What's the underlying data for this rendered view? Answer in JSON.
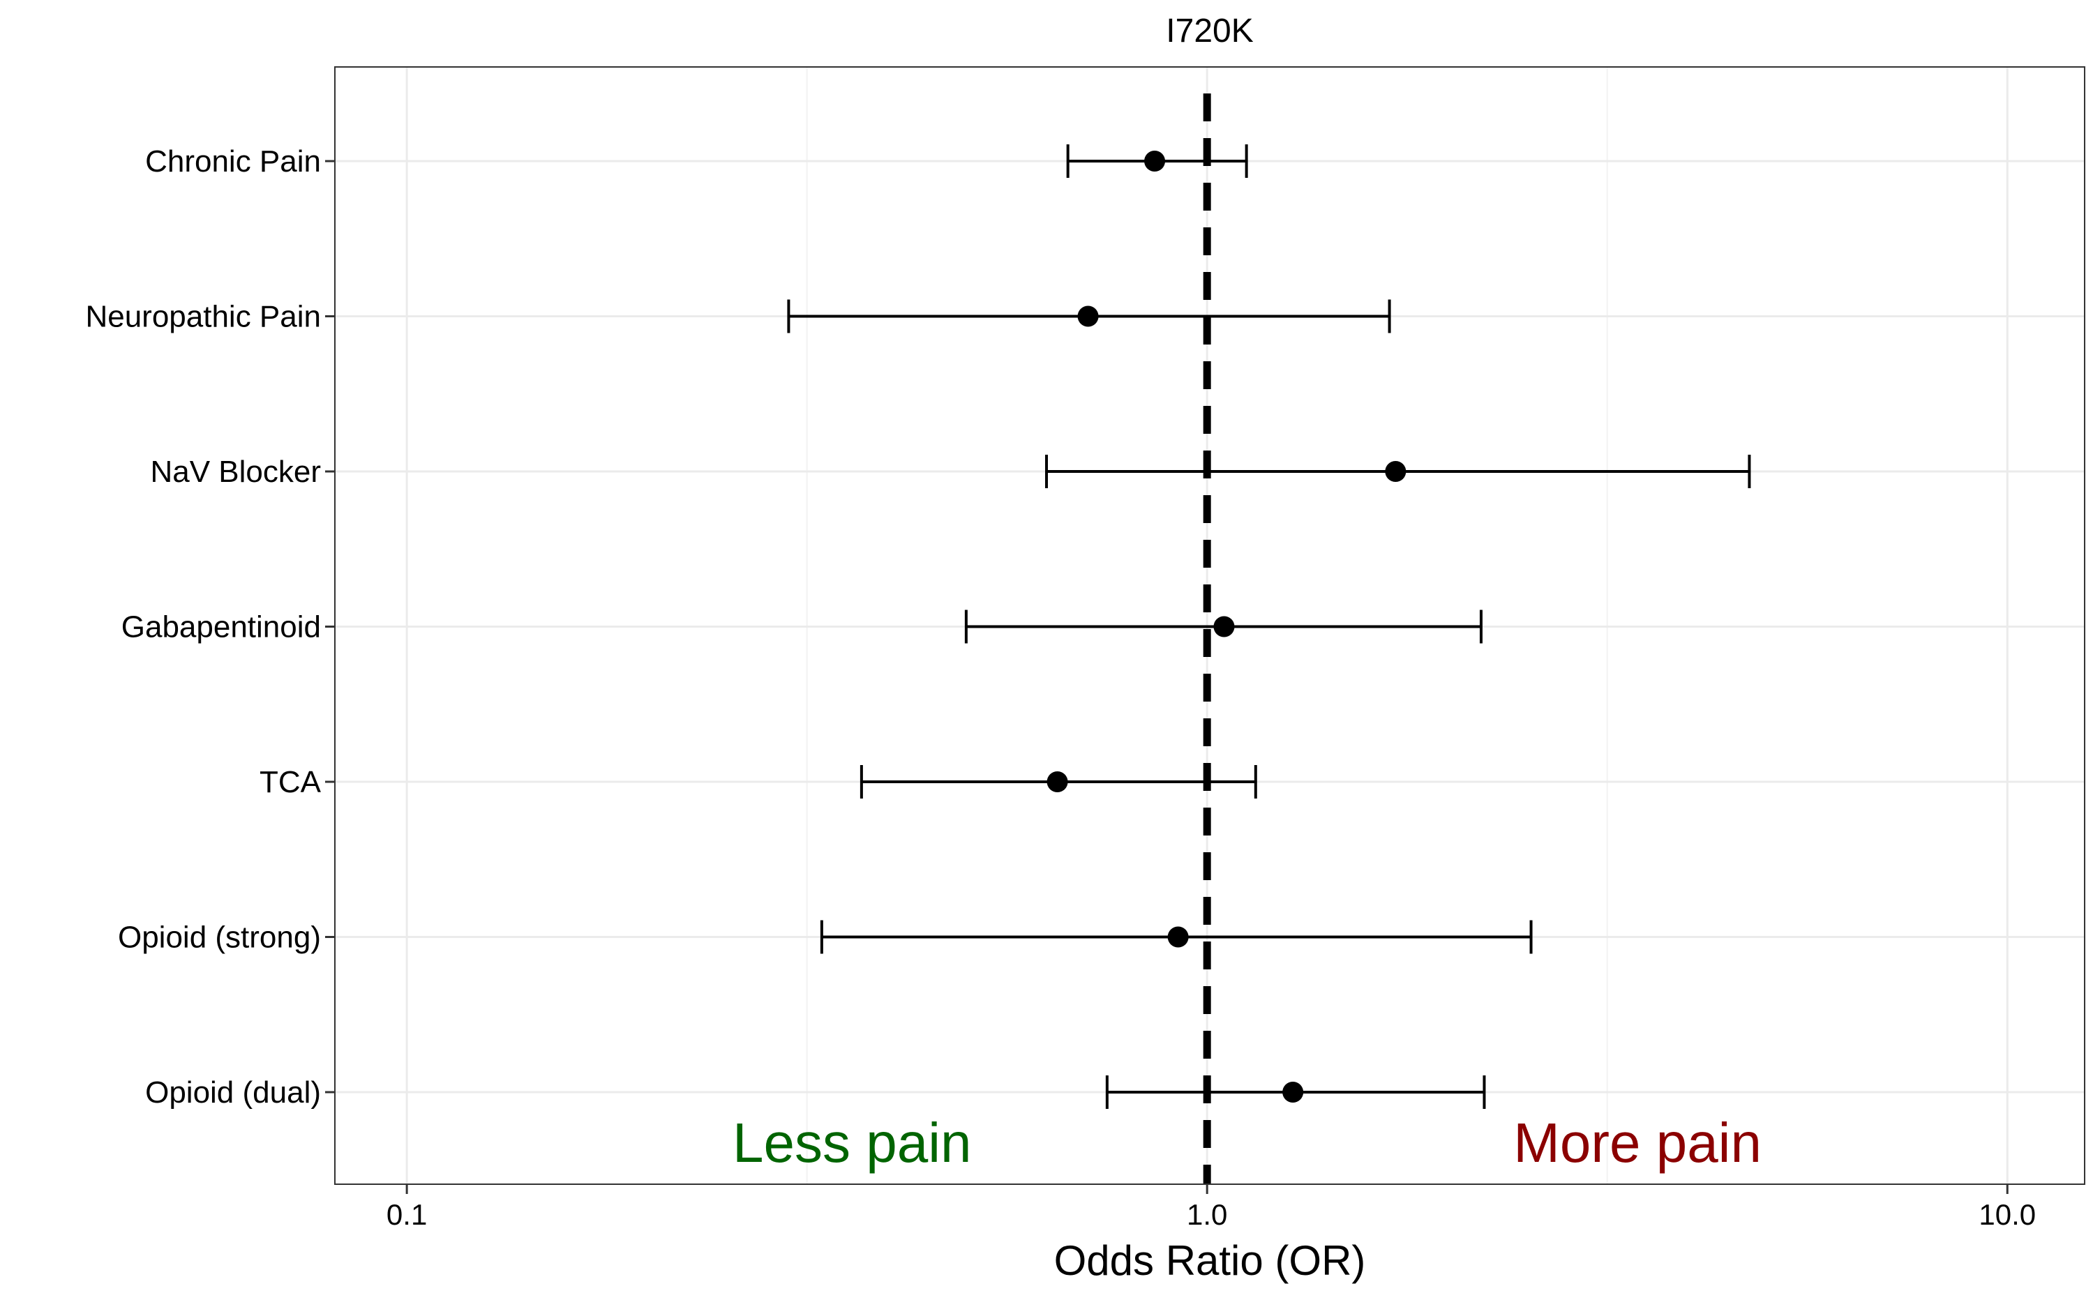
{
  "chart_data": {
    "type": "scatter",
    "subtype": "forest-plot",
    "title": "I720K",
    "xlabel": "Odds Ratio (OR)",
    "ylabel": "",
    "x_scale": "log",
    "xlim": [
      0.0813,
      12.49
    ],
    "x_ticks": [
      0.1,
      1.0,
      10.0
    ],
    "x_tick_labels": [
      "0.1",
      "1.0",
      "10.0"
    ],
    "reference_line": {
      "x": 1.0,
      "style": "dashed"
    },
    "grid": true,
    "legend": "none",
    "categories": [
      "Chronic Pain",
      "Neuropathic Pain",
      "NaV Blocker",
      "Gabapentinoid",
      "TCA",
      "Opioid (strong)",
      "Opioid (dual)"
    ],
    "points": [
      {
        "label": "Chronic Pain",
        "or": 0.86,
        "lower": 0.67,
        "upper": 1.12
      },
      {
        "label": "Neuropathic Pain",
        "or": 0.71,
        "lower": 0.3,
        "upper": 1.69
      },
      {
        "label": "NaV Blocker",
        "or": 1.72,
        "lower": 0.63,
        "upper": 4.76
      },
      {
        "label": "Gabapentinoid",
        "or": 1.05,
        "lower": 0.5,
        "upper": 2.2
      },
      {
        "label": "TCA",
        "or": 0.65,
        "lower": 0.37,
        "upper": 1.15
      },
      {
        "label": "Opioid (strong)",
        "or": 0.92,
        "lower": 0.33,
        "upper": 2.54
      },
      {
        "label": "Opioid (dual)",
        "or": 1.28,
        "lower": 0.75,
        "upper": 2.22
      }
    ],
    "annotations": [
      {
        "text": "Less pain",
        "x": 0.36,
        "color": "#006400"
      },
      {
        "text": "More pain",
        "x": 3.45,
        "color": "#8b0000"
      }
    ]
  }
}
